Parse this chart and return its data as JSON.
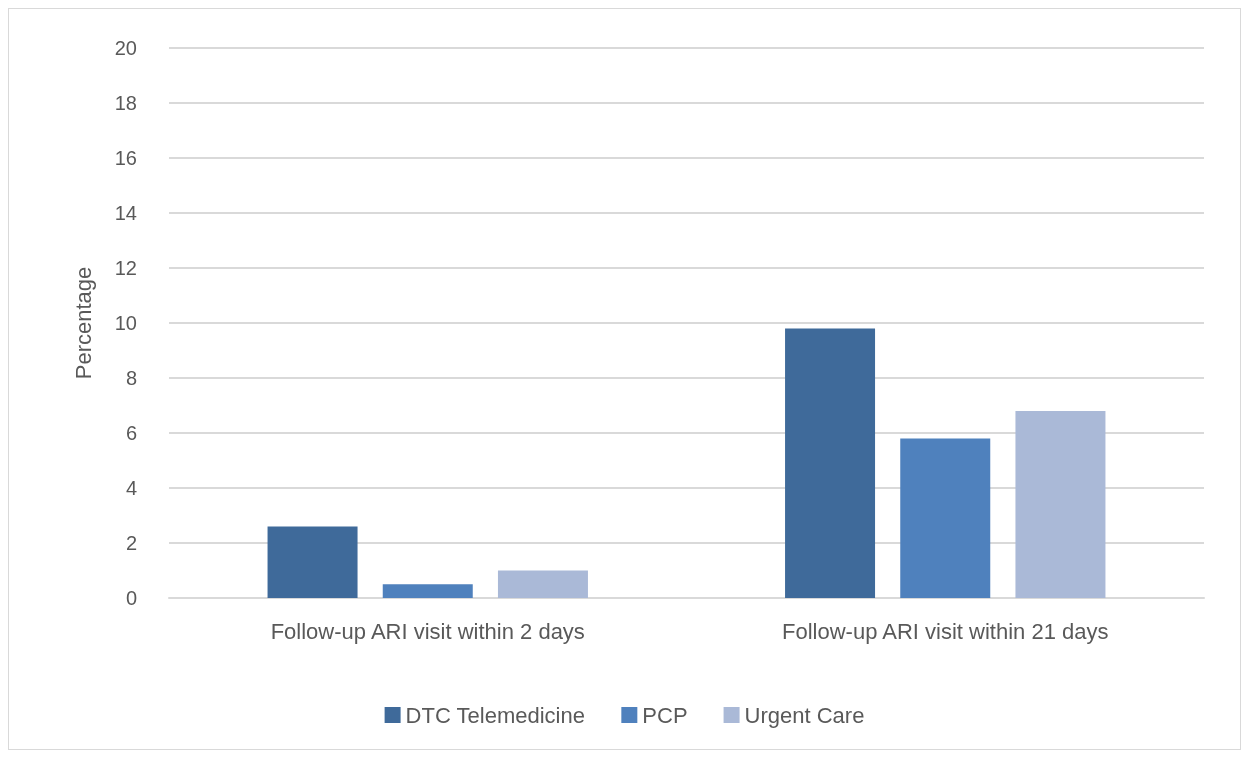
{
  "chart_data": {
    "type": "bar",
    "ylabel": "Percentage",
    "categories": [
      "Follow-up ARI visit within 2 days",
      "Follow-up ARI visit within 21 days"
    ],
    "series": [
      {
        "name": "DTC Telemedicine",
        "color": "#3f6a9a",
        "values": [
          2.6,
          9.8
        ]
      },
      {
        "name": "PCP",
        "color": "#4f81bd",
        "values": [
          0.5,
          5.8
        ]
      },
      {
        "name": "Urgent Care",
        "color": "#aab9d7",
        "values": [
          1.0,
          6.8
        ]
      }
    ],
    "ylim": [
      0,
      20
    ],
    "yticks": [
      0,
      2,
      4,
      6,
      8,
      10,
      12,
      14,
      16,
      18,
      20
    ],
    "grid": "y",
    "legend": "bottom"
  }
}
